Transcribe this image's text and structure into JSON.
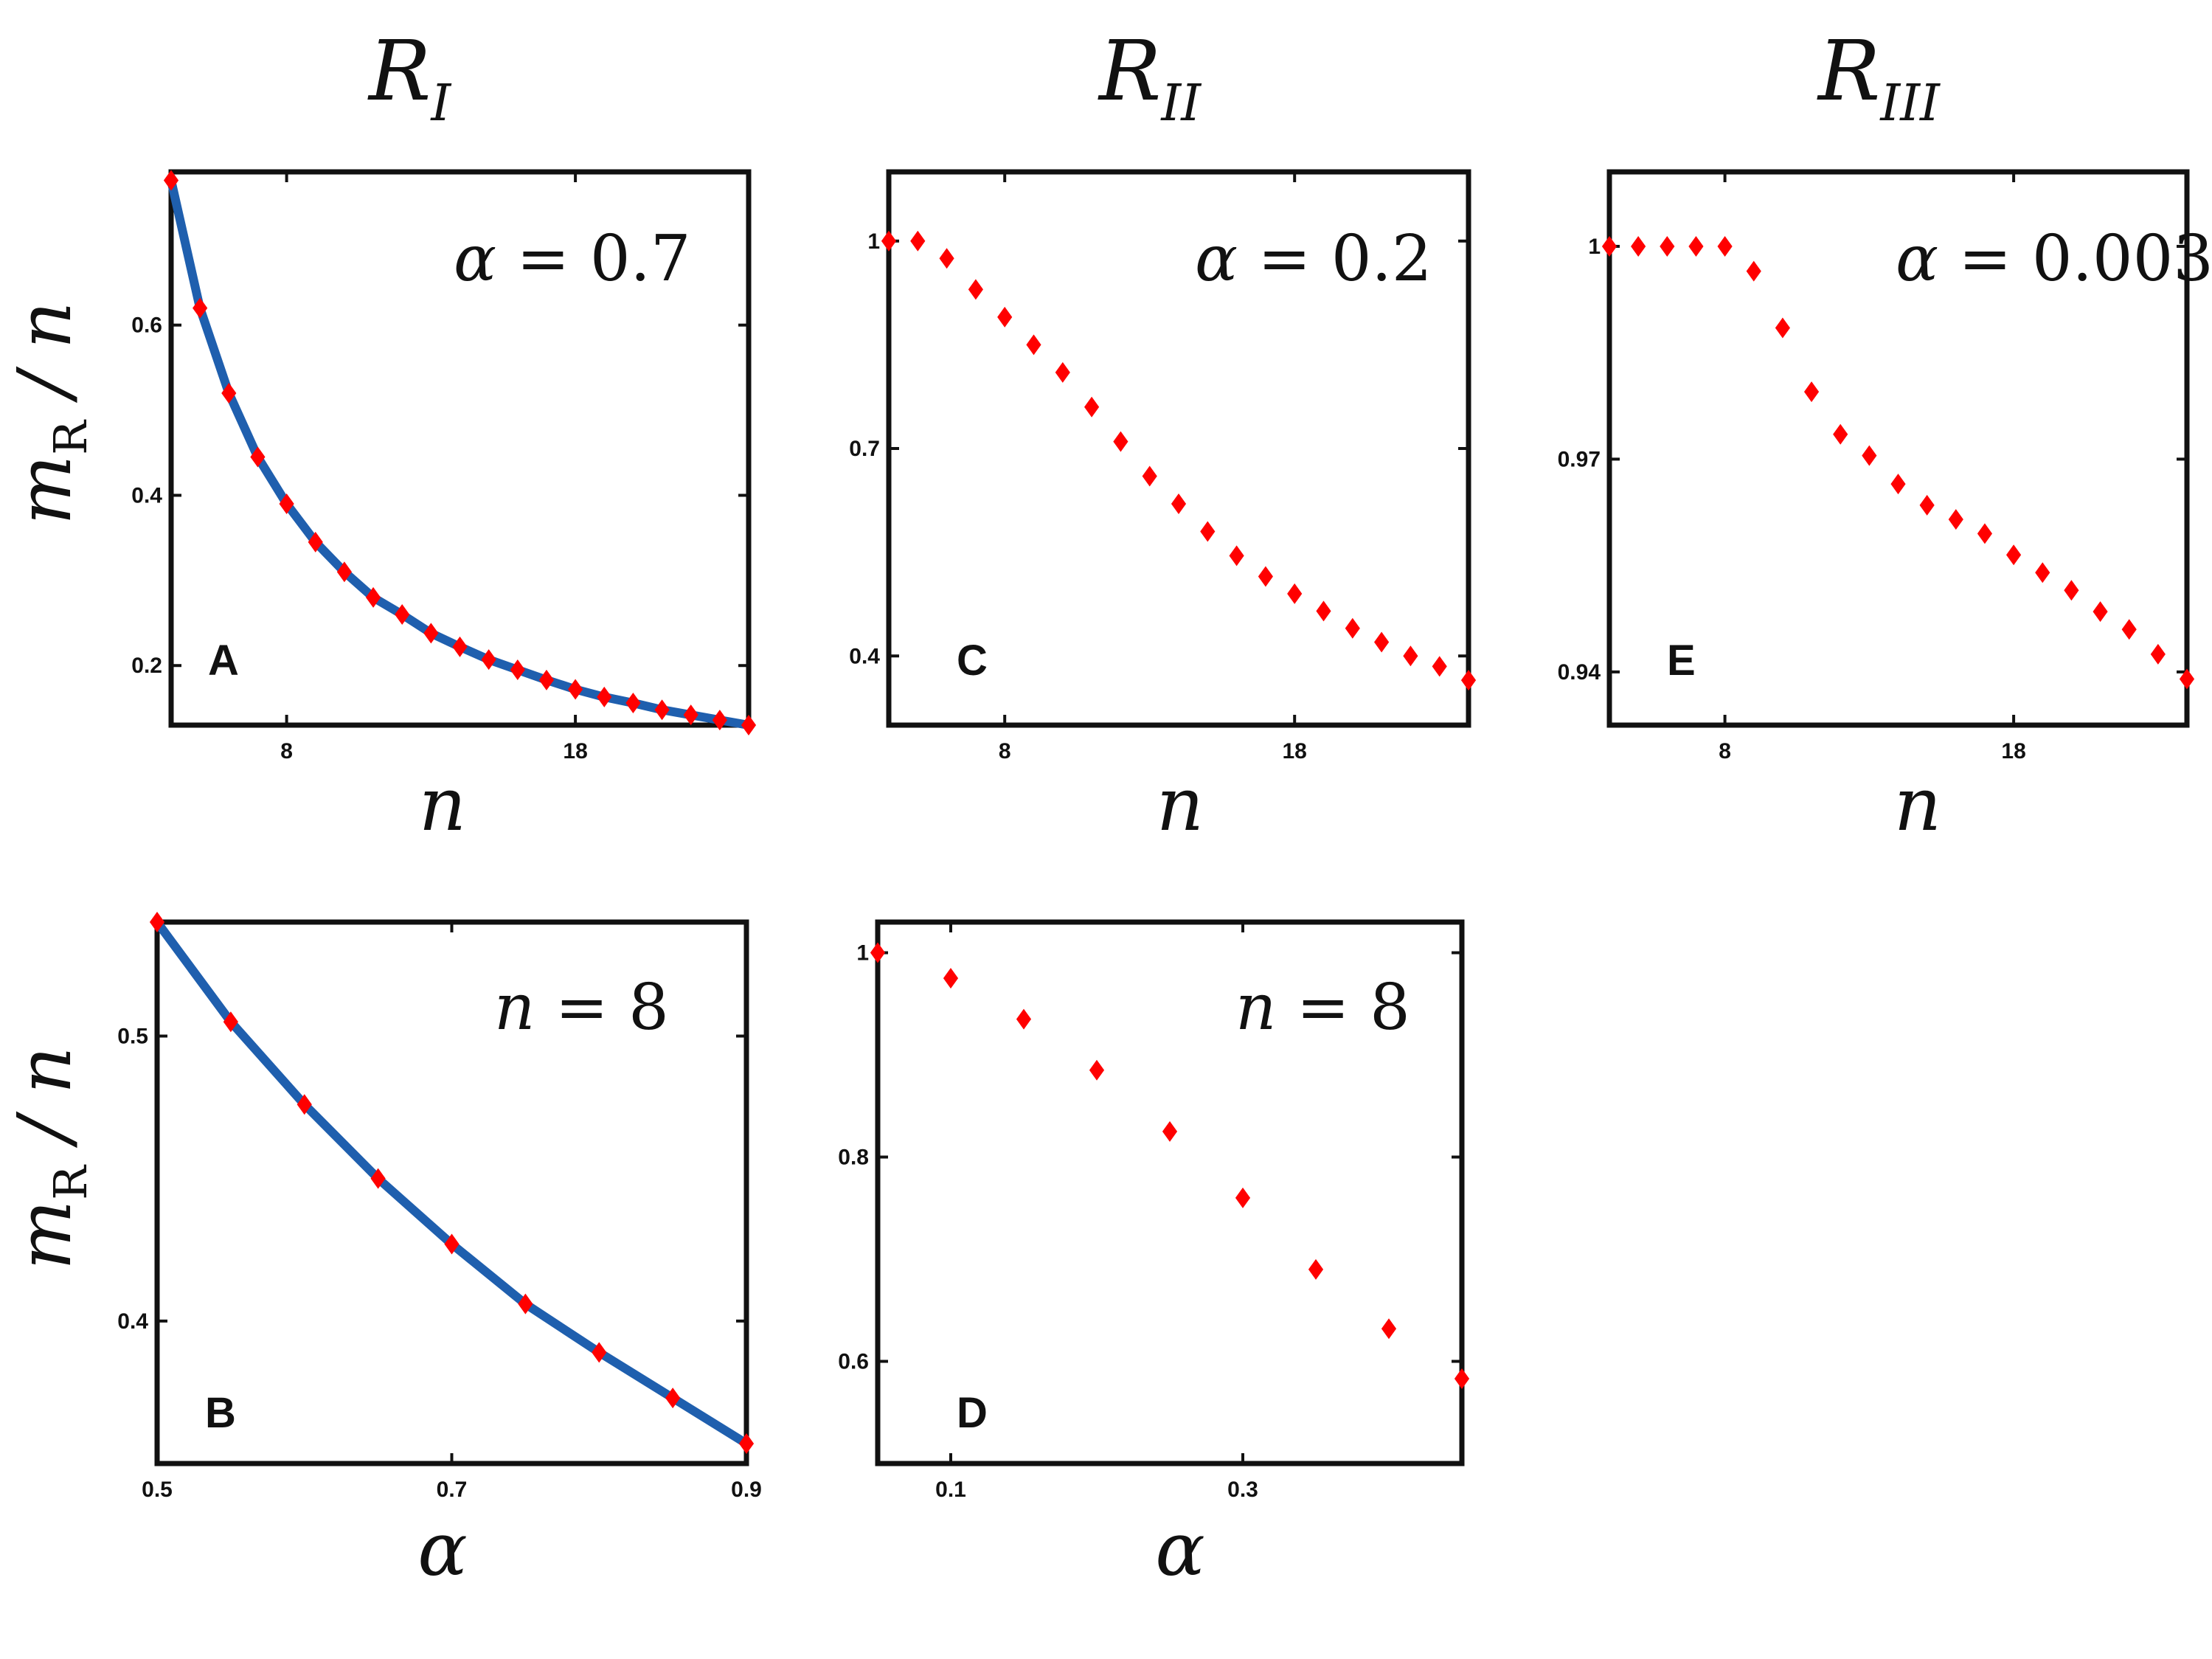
{
  "figure": {
    "columns": [
      {
        "symbol": "R",
        "sub": "I"
      },
      {
        "symbol": "R",
        "sub": "II"
      },
      {
        "symbol": "R",
        "sub": "III"
      }
    ],
    "y_label": {
      "symbol": "m",
      "sub": "R",
      "rest": " / n"
    }
  },
  "chart_data": [
    {
      "id": "A",
      "type": "scatter",
      "panel_label": "A",
      "annotation": {
        "left": "α",
        "right": "0.7"
      },
      "xlabel": "n",
      "ylabel": "m_R / n",
      "xlim": [
        4,
        24
      ],
      "ylim": [
        0.13,
        0.78
      ],
      "xticks": [
        8,
        18
      ],
      "xtick_labels": [
        "8",
        "18"
      ],
      "yticks": [
        0.2,
        0.4,
        0.6
      ],
      "ytick_labels": [
        "0.2",
        "0.4",
        "0.6"
      ],
      "line_color": "#1f5fae",
      "marker_color": "#ff0000",
      "line": true,
      "series": [
        {
          "x": [
            4,
            5,
            6,
            7,
            8,
            9,
            10,
            11,
            12,
            13,
            14,
            15,
            16,
            17,
            18,
            19,
            20,
            21,
            22,
            23,
            24
          ],
          "y": [
            0.77,
            0.62,
            0.52,
            0.445,
            0.39,
            0.345,
            0.31,
            0.28,
            0.26,
            0.238,
            0.222,
            0.207,
            0.195,
            0.183,
            0.172,
            0.163,
            0.156,
            0.148,
            0.142,
            0.136,
            0.13
          ]
        }
      ]
    },
    {
      "id": "B",
      "type": "scatter",
      "panel_label": "B",
      "annotation": {
        "left": "n",
        "right": "8"
      },
      "xlabel": "α",
      "ylabel": "m_R / n",
      "xlim": [
        0.5,
        0.9
      ],
      "ylim": [
        0.35,
        0.54
      ],
      "xticks": [
        0.5,
        0.7,
        0.9
      ],
      "xtick_labels": [
        "0.5",
        "0.7",
        "0.9"
      ],
      "yticks": [
        0.4,
        0.5
      ],
      "ytick_labels": [
        "0.4",
        "0.5"
      ],
      "line_color": "#1f5fae",
      "marker_color": "#ff0000",
      "line": true,
      "series": [
        {
          "x": [
            0.5,
            0.55,
            0.6,
            0.65,
            0.7,
            0.75,
            0.8,
            0.85,
            0.9
          ],
          "y": [
            0.54,
            0.505,
            0.476,
            0.45,
            0.427,
            0.406,
            0.389,
            0.373,
            0.357
          ]
        }
      ]
    },
    {
      "id": "C",
      "type": "scatter",
      "panel_label": "C",
      "annotation": {
        "left": "α",
        "right": "0.2"
      },
      "xlabel": "n",
      "ylabel": "m_R / n",
      "xlim": [
        4,
        24
      ],
      "ylim": [
        0.3,
        1.1
      ],
      "xticks": [
        8,
        18
      ],
      "xtick_labels": [
        "8",
        "18"
      ],
      "yticks": [
        0.4,
        0.7,
        1.0
      ],
      "ytick_labels": [
        "0.4",
        "0.7",
        "1"
      ],
      "line_color": "#1f5fae",
      "marker_color": "#ff0000",
      "line": false,
      "series": [
        {
          "x": [
            4,
            5,
            6,
            7,
            8,
            9,
            10,
            11,
            12,
            13,
            14,
            15,
            16,
            17,
            18,
            19,
            20,
            21,
            22,
            23,
            24
          ],
          "y": [
            1.0,
            1.0,
            0.975,
            0.93,
            0.89,
            0.85,
            0.81,
            0.76,
            0.71,
            0.66,
            0.62,
            0.58,
            0.545,
            0.515,
            0.49,
            0.465,
            0.44,
            0.42,
            0.4,
            0.385,
            0.365
          ]
        }
      ]
    },
    {
      "id": "D",
      "type": "scatter",
      "panel_label": "D",
      "annotation": {
        "left": "n",
        "right": "8"
      },
      "xlabel": "α",
      "ylabel": "m_R / n",
      "xlim": [
        0.05,
        0.45
      ],
      "ylim": [
        0.5,
        1.03
      ],
      "xticks": [
        0.1,
        0.3
      ],
      "xtick_labels": [
        "0.1",
        "0.3"
      ],
      "yticks": [
        0.6,
        0.8,
        1.0
      ],
      "ytick_labels": [
        "0.6",
        "0.8",
        "1"
      ],
      "line_color": "#1f5fae",
      "marker_color": "#ff0000",
      "line": false,
      "series": [
        {
          "x": [
            0.05,
            0.1,
            0.15,
            0.2,
            0.25,
            0.3,
            0.35,
            0.4,
            0.45
          ],
          "y": [
            1.0,
            0.975,
            0.935,
            0.885,
            0.825,
            0.76,
            0.69,
            0.632,
            0.583
          ]
        }
      ]
    },
    {
      "id": "E",
      "type": "scatter",
      "panel_label": "E",
      "annotation": {
        "left": "α",
        "right": "0.003"
      },
      "xlabel": "n",
      "ylabel": "m_R / n",
      "xlim": [
        4,
        24
      ],
      "ylim": [
        0.9325,
        1.0105
      ],
      "xticks": [
        8,
        18
      ],
      "xtick_labels": [
        "8",
        "18"
      ],
      "yticks": [
        0.94,
        0.97,
        1.0
      ],
      "ytick_labels": [
        "0.94",
        "0.97",
        "1"
      ],
      "line_color": "#1f5fae",
      "marker_color": "#ff0000",
      "line": false,
      "series": [
        {
          "x": [
            4,
            5,
            6,
            7,
            8,
            9,
            10,
            11,
            12,
            13,
            14,
            15,
            16,
            17,
            18,
            19,
            20,
            21,
            22,
            23,
            24
          ],
          "y": [
            1.0,
            1.0,
            1.0,
            1.0,
            1.0,
            0.9965,
            0.9885,
            0.9795,
            0.9735,
            0.9705,
            0.9665,
            0.9635,
            0.9615,
            0.9595,
            0.9565,
            0.954,
            0.9515,
            0.9485,
            0.946,
            0.9425,
            0.939
          ]
        }
      ]
    }
  ]
}
